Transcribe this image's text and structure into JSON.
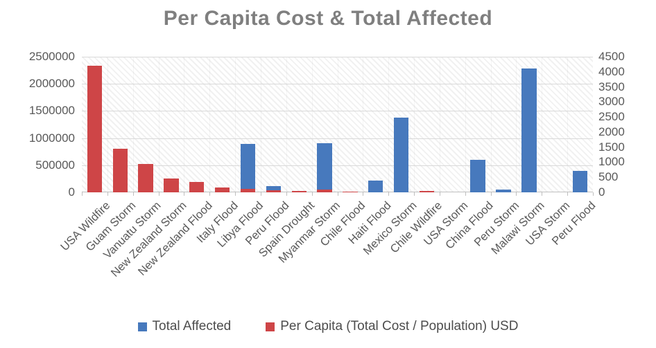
{
  "title": "Per Capita Cost & Total Affected",
  "legend": {
    "items": [
      {
        "label": "Total Affected",
        "color": "#4779bd"
      },
      {
        "label": "Per Capita (Total Cost / Population) USD",
        "color": "#ce4547"
      }
    ],
    "position": "bottom"
  },
  "colors": {
    "blue_series": "#4779bd",
    "red_series": "#ce4547",
    "gridline": "#d9d9d9",
    "axis_text": "#595959",
    "title_text": "#7f7f7f"
  },
  "chart_data": {
    "type": "bar",
    "title": "Per Capita Cost & Total Affected",
    "xlabel": "",
    "ylabel_left": "",
    "ylabel_right": "",
    "grid": true,
    "plot_background": "diagonal-hatch",
    "legend_position": "bottom",
    "categories": [
      "USA Wildfire",
      "Guam Storm",
      "Vanuatu Storm",
      "New Zealand Storm",
      "New Zealand Flood",
      "Italy Flood",
      "Libya Flood",
      "Peru Flood",
      "Spain Drought",
      "Myanmar Storm",
      "Chile Flood",
      "Haiti Flood",
      "Mexico Storm",
      "Chile Wildfire",
      "USA Storm",
      "China Flood",
      "Peru Storm",
      "Malawi Storm",
      "USA Storm",
      "Peru Flood"
    ],
    "series": [
      {
        "name": "Total Affected",
        "axis": "left",
        "color": "#4779bd",
        "values": [
          0,
          0,
          0,
          0,
          0,
          0,
          890000,
          110000,
          0,
          910000,
          0,
          215000,
          1380000,
          0,
          0,
          600000,
          50000,
          2280000,
          0,
          400000
        ]
      },
      {
        "name": "Per Capita (Total Cost / Population) USD",
        "axis": "right",
        "color": "#ce4547",
        "values": [
          4200,
          1450,
          940,
          470,
          350,
          160,
          110,
          60,
          45,
          90,
          30,
          0,
          0,
          40,
          0,
          0,
          0,
          0,
          0,
          0
        ]
      }
    ],
    "left_axis": {
      "min": 0,
      "max": 2500000,
      "step": 500000,
      "ticks": [
        "2500000",
        "2000000",
        "1500000",
        "1000000",
        "500000",
        "0"
      ]
    },
    "right_axis": {
      "min": 0,
      "max": 4500,
      "step": 500,
      "ticks": [
        "4500",
        "4000",
        "3500",
        "3000",
        "2500",
        "2000",
        "1500",
        "1000",
        "500",
        "0"
      ]
    }
  }
}
